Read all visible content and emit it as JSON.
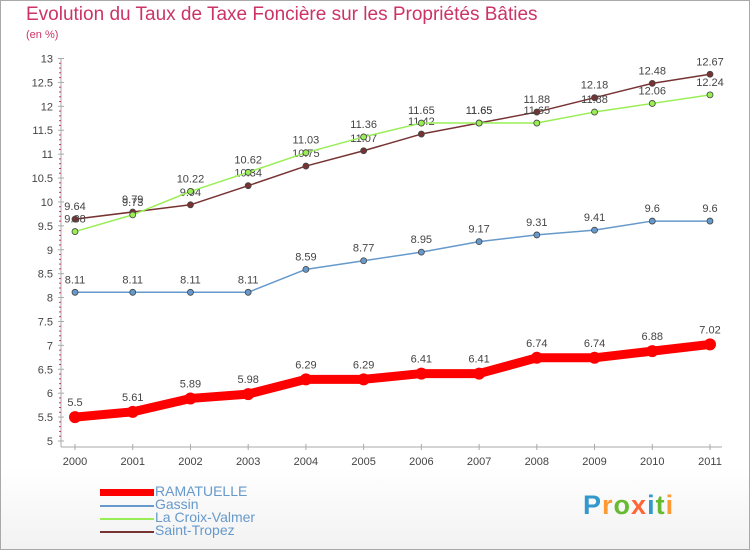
{
  "title": "Evolution du Taux de Taxe Foncière sur les Propriétés Bâties",
  "subtitle": "(en %)",
  "chart_data": {
    "type": "line",
    "title": "Evolution du Taux de Taxe Foncière sur les Propriétés Bâties",
    "ylabel": "(en %)",
    "xlabel": "",
    "x": [
      "2000",
      "2001",
      "2002",
      "2003",
      "2004",
      "2005",
      "2006",
      "2007",
      "2008",
      "2009",
      "2010",
      "2011"
    ],
    "ylim": [
      5,
      13
    ],
    "yticks": [
      "5",
      "5.5",
      "6",
      "6.5",
      "7",
      "7.5",
      "8",
      "8.5",
      "9",
      "9.5",
      "10",
      "10.5",
      "11",
      "11.5",
      "12",
      "12.5",
      "13"
    ],
    "grid": false,
    "legend_position": "bottom-left",
    "series": [
      {
        "name": "RAMATUELLE",
        "color": "#ff0000",
        "labels": [
          "5.5",
          "5.61",
          "5.89",
          "5.98",
          "6.29",
          "6.29",
          "6.41",
          "6.41",
          "6.74",
          "6.74",
          "6.88",
          "7.02"
        ],
        "values": [
          5.5,
          5.61,
          5.89,
          5.98,
          6.29,
          6.29,
          6.41,
          6.41,
          6.74,
          6.74,
          6.88,
          7.02
        ]
      },
      {
        "name": "Gassin",
        "color": "#6699cc",
        "labels": [
          "8.11",
          "8.11",
          "8.11",
          "8.11",
          "8.59",
          "8.77",
          "8.95",
          "9.17",
          "9.31",
          "9.41",
          "9.6",
          "9.6"
        ],
        "values": [
          8.11,
          8.11,
          8.11,
          8.11,
          8.59,
          8.77,
          8.95,
          9.17,
          9.31,
          9.41,
          9.6,
          9.6
        ]
      },
      {
        "name": "La Croix-Valmer",
        "color": "#99ee55",
        "labels": [
          "9.38",
          "9.73",
          "10.22",
          "10.62",
          "11.03",
          "11.36",
          "11.65",
          "11.65",
          "11.65",
          "11.88",
          "12.06",
          "12.24"
        ],
        "values": [
          9.38,
          9.73,
          10.22,
          10.62,
          11.03,
          11.36,
          11.65,
          11.65,
          11.65,
          11.88,
          12.06,
          12.24
        ]
      },
      {
        "name": "Saint-Tropez",
        "color": "#773333",
        "labels": [
          "9.64",
          "9.79",
          "9.94",
          "10.34",
          "10.75",
          "11.07",
          "11.42",
          "11.65",
          "11.88",
          "12.18",
          "12.48",
          "12.67"
        ],
        "values": [
          9.64,
          9.79,
          9.94,
          10.34,
          10.75,
          11.07,
          11.42,
          11.65,
          11.88,
          12.18,
          12.48,
          12.67
        ]
      }
    ]
  },
  "logo": {
    "letters": [
      "P",
      "r",
      "o",
      "x",
      "i",
      "t",
      "i"
    ],
    "colors": [
      "#3399cc",
      "#ff9933",
      "#66bb33",
      "#ff6633",
      "#3399cc",
      "#66bb33",
      "#ff9933"
    ]
  }
}
